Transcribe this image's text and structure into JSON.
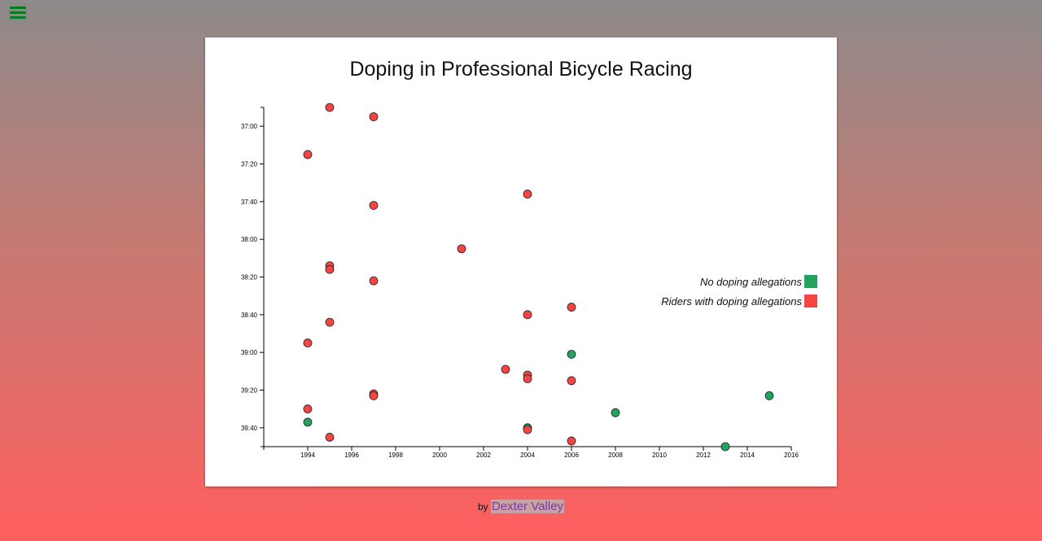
{
  "menu": {
    "icon": "hamburger-menu-icon",
    "color": "#0a7a22"
  },
  "chart_data": {
    "type": "scatter",
    "title": "Doping in Professional Bicycle Racing",
    "xlabel": "",
    "ylabel": "",
    "x_ticks": [
      "1994",
      "1996",
      "1998",
      "2000",
      "2002",
      "2004",
      "2006",
      "2008",
      "2010",
      "2012",
      "2014",
      "2016"
    ],
    "y_ticks": [
      "37:00",
      "37:20",
      "37:40",
      "38:00",
      "38:20",
      "38:40",
      "39:00",
      "39:20",
      "39:40"
    ],
    "xlim": [
      1992,
      2016
    ],
    "ylim_seconds": [
      2210,
      2390
    ],
    "y_inverted": true,
    "grid": false,
    "legend_position": "right",
    "legend": [
      {
        "label": "No doping allegations",
        "color": "#23a35f"
      },
      {
        "label": "Riders with doping allegations",
        "color": "#f44545"
      }
    ],
    "series": [
      {
        "name": "No doping allegations",
        "color": "#23a35f",
        "points": [
          {
            "x": 2006,
            "y": "39:01"
          },
          {
            "x": 2015,
            "y": "39:23"
          },
          {
            "x": 2008,
            "y": "39:32"
          },
          {
            "x": 1994,
            "y": "39:37"
          },
          {
            "x": 2004,
            "y": "39:40"
          },
          {
            "x": 2013,
            "y": "39:50"
          }
        ]
      },
      {
        "name": "Riders with doping allegations",
        "color": "#f44545",
        "points": [
          {
            "x": 1995,
            "y": "36:50"
          },
          {
            "x": 1997,
            "y": "36:55"
          },
          {
            "x": 1994,
            "y": "37:15"
          },
          {
            "x": 2004,
            "y": "37:36"
          },
          {
            "x": 1997,
            "y": "37:42"
          },
          {
            "x": 2001,
            "y": "38:05"
          },
          {
            "x": 1995,
            "y": "38:14"
          },
          {
            "x": 1995,
            "y": "38:16"
          },
          {
            "x": 1997,
            "y": "38:22"
          },
          {
            "x": 2006,
            "y": "38:36"
          },
          {
            "x": 2004,
            "y": "38:40"
          },
          {
            "x": 1995,
            "y": "38:44"
          },
          {
            "x": 1994,
            "y": "38:55"
          },
          {
            "x": 2003,
            "y": "39:09"
          },
          {
            "x": 2004,
            "y": "39:12"
          },
          {
            "x": 2004,
            "y": "39:14"
          },
          {
            "x": 2006,
            "y": "39:15"
          },
          {
            "x": 1997,
            "y": "39:22"
          },
          {
            "x": 1997,
            "y": "39:23"
          },
          {
            "x": 1994,
            "y": "39:30"
          },
          {
            "x": 2004,
            "y": "39:41"
          },
          {
            "x": 1995,
            "y": "39:45"
          },
          {
            "x": 2006,
            "y": "39:47"
          }
        ]
      }
    ]
  },
  "footer": {
    "prefix": "by",
    "author": "Dexter Valley"
  }
}
